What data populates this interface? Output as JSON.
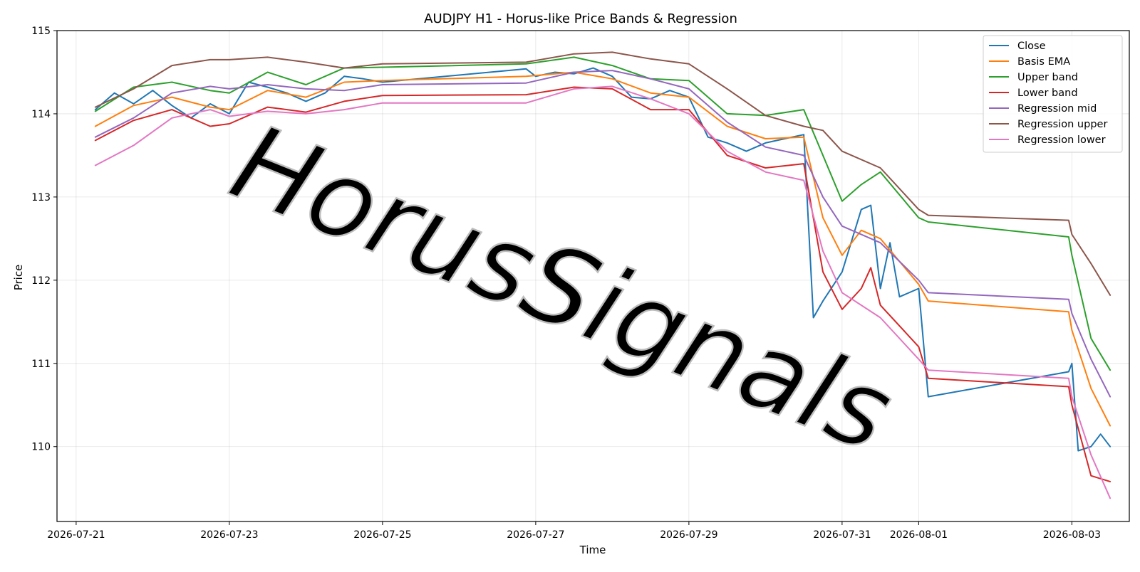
{
  "chart_data": {
    "type": "line",
    "title": "AUDJPY H1 - Horus-like Price Bands & Regression",
    "xlabel": "Time",
    "ylabel": "Price",
    "watermark": "HorusSignals",
    "x_ticks": [
      "2026-07-21",
      "2026-07-23",
      "2026-07-25",
      "2026-07-27",
      "2026-07-29",
      "2026-07-31",
      "2026-08-01",
      "2026-08-03"
    ],
    "y_ticks": [
      "110",
      "111",
      "112",
      "113",
      "114",
      "115"
    ],
    "xlim": [
      "2026-07-20T18:00",
      "2026-08-03T18:00"
    ],
    "ylim": [
      109.1,
      115.0
    ],
    "grid": true,
    "legend_position": "top-right",
    "series": [
      {
        "name": "Close",
        "color": "#1f77b4",
        "points": [
          [
            "2026-07-21T06:00",
            114.05
          ],
          [
            "2026-07-21T12:00",
            114.25
          ],
          [
            "2026-07-21T18:00",
            114.12
          ],
          [
            "2026-07-22T00:00",
            114.28
          ],
          [
            "2026-07-22T06:00",
            114.1
          ],
          [
            "2026-07-22T12:00",
            113.95
          ],
          [
            "2026-07-22T18:00",
            114.12
          ],
          [
            "2026-07-23T00:00",
            114.0
          ],
          [
            "2026-07-23T06:00",
            114.38
          ],
          [
            "2026-07-23T12:00",
            114.32
          ],
          [
            "2026-07-23T18:00",
            114.25
          ],
          [
            "2026-07-24T00:00",
            114.15
          ],
          [
            "2026-07-24T06:00",
            114.25
          ],
          [
            "2026-07-24T12:00",
            114.45
          ],
          [
            "2026-07-24T18:00",
            114.42
          ],
          [
            "2026-07-25T00:00",
            114.38
          ],
          [
            "2026-07-26T21:00",
            114.54
          ],
          [
            "2026-07-27T00:00",
            114.45
          ],
          [
            "2026-07-27T06:00",
            114.5
          ],
          [
            "2026-07-27T12:00",
            114.48
          ],
          [
            "2026-07-27T18:00",
            114.55
          ],
          [
            "2026-07-28T00:00",
            114.45
          ],
          [
            "2026-07-28T06:00",
            114.2
          ],
          [
            "2026-07-28T12:00",
            114.18
          ],
          [
            "2026-07-28T18:00",
            114.28
          ],
          [
            "2026-07-29T00:00",
            114.2
          ],
          [
            "2026-07-29T06:00",
            113.72
          ],
          [
            "2026-07-29T12:00",
            113.65
          ],
          [
            "2026-07-29T18:00",
            113.55
          ],
          [
            "2026-07-30T00:00",
            113.65
          ],
          [
            "2026-07-30T06:00",
            113.7
          ],
          [
            "2026-07-30T12:00",
            113.75
          ],
          [
            "2026-07-30T15:00",
            111.55
          ],
          [
            "2026-07-30T18:00",
            111.75
          ],
          [
            "2026-07-31T00:00",
            112.1
          ],
          [
            "2026-07-31T06:00",
            112.85
          ],
          [
            "2026-07-31T09:00",
            112.9
          ],
          [
            "2026-07-31T12:00",
            111.9
          ],
          [
            "2026-07-31T15:00",
            112.45
          ],
          [
            "2026-07-31T18:00",
            111.8
          ],
          [
            "2026-08-01T00:00",
            111.9
          ],
          [
            "2026-08-01T03:00",
            110.6
          ],
          [
            "2026-08-02T23:00",
            110.9
          ],
          [
            "2026-08-03T00:00",
            111.0
          ],
          [
            "2026-08-03T02:00",
            109.95
          ],
          [
            "2026-08-03T06:00",
            110.0
          ],
          [
            "2026-08-03T09:00",
            110.15
          ],
          [
            "2026-08-03T12:00",
            110.0
          ]
        ]
      },
      {
        "name": "Basis EMA",
        "color": "#ff7f0e",
        "points": [
          [
            "2026-07-21T06:00",
            113.85
          ],
          [
            "2026-07-21T18:00",
            114.1
          ],
          [
            "2026-07-22T06:00",
            114.2
          ],
          [
            "2026-07-22T18:00",
            114.08
          ],
          [
            "2026-07-23T00:00",
            114.05
          ],
          [
            "2026-07-23T12:00",
            114.28
          ],
          [
            "2026-07-24T00:00",
            114.2
          ],
          [
            "2026-07-24T12:00",
            114.38
          ],
          [
            "2026-07-25T00:00",
            114.4
          ],
          [
            "2026-07-26T21:00",
            114.45
          ],
          [
            "2026-07-27T12:00",
            114.5
          ],
          [
            "2026-07-28T00:00",
            114.42
          ],
          [
            "2026-07-28T12:00",
            114.25
          ],
          [
            "2026-07-29T00:00",
            114.2
          ],
          [
            "2026-07-29T12:00",
            113.85
          ],
          [
            "2026-07-30T00:00",
            113.7
          ],
          [
            "2026-07-30T12:00",
            113.72
          ],
          [
            "2026-07-30T18:00",
            112.75
          ],
          [
            "2026-07-31T00:00",
            112.3
          ],
          [
            "2026-07-31T06:00",
            112.6
          ],
          [
            "2026-07-31T12:00",
            112.5
          ],
          [
            "2026-08-01T00:00",
            111.95
          ],
          [
            "2026-08-01T03:00",
            111.75
          ],
          [
            "2026-08-02T23:00",
            111.62
          ],
          [
            "2026-08-03T00:00",
            111.4
          ],
          [
            "2026-08-03T06:00",
            110.7
          ],
          [
            "2026-08-03T12:00",
            110.25
          ]
        ]
      },
      {
        "name": "Upper band",
        "color": "#2ca02c",
        "points": [
          [
            "2026-07-21T06:00",
            114.03
          ],
          [
            "2026-07-21T18:00",
            114.32
          ],
          [
            "2026-07-22T06:00",
            114.38
          ],
          [
            "2026-07-22T18:00",
            114.28
          ],
          [
            "2026-07-23T00:00",
            114.25
          ],
          [
            "2026-07-23T12:00",
            114.5
          ],
          [
            "2026-07-24T00:00",
            114.35
          ],
          [
            "2026-07-24T12:00",
            114.55
          ],
          [
            "2026-07-25T00:00",
            114.56
          ],
          [
            "2026-07-26T21:00",
            114.6
          ],
          [
            "2026-07-27T12:00",
            114.68
          ],
          [
            "2026-07-28T00:00",
            114.58
          ],
          [
            "2026-07-28T12:00",
            114.42
          ],
          [
            "2026-07-29T00:00",
            114.4
          ],
          [
            "2026-07-29T12:00",
            114.0
          ],
          [
            "2026-07-30T00:00",
            113.98
          ],
          [
            "2026-07-30T12:00",
            114.05
          ],
          [
            "2026-07-30T18:00",
            113.5
          ],
          [
            "2026-07-31T00:00",
            112.95
          ],
          [
            "2026-07-31T06:00",
            113.15
          ],
          [
            "2026-07-31T12:00",
            113.3
          ],
          [
            "2026-08-01T00:00",
            112.75
          ],
          [
            "2026-08-01T03:00",
            112.7
          ],
          [
            "2026-08-02T23:00",
            112.52
          ],
          [
            "2026-08-03T00:00",
            112.3
          ],
          [
            "2026-08-03T06:00",
            111.3
          ],
          [
            "2026-08-03T12:00",
            110.92
          ]
        ]
      },
      {
        "name": "Lower band",
        "color": "#d62728",
        "points": [
          [
            "2026-07-21T06:00",
            113.68
          ],
          [
            "2026-07-21T18:00",
            113.92
          ],
          [
            "2026-07-22T06:00",
            114.05
          ],
          [
            "2026-07-22T18:00",
            113.85
          ],
          [
            "2026-07-23T00:00",
            113.88
          ],
          [
            "2026-07-23T12:00",
            114.08
          ],
          [
            "2026-07-24T00:00",
            114.02
          ],
          [
            "2026-07-24T12:00",
            114.15
          ],
          [
            "2026-07-25T00:00",
            114.22
          ],
          [
            "2026-07-26T21:00",
            114.23
          ],
          [
            "2026-07-27T12:00",
            114.32
          ],
          [
            "2026-07-28T00:00",
            114.3
          ],
          [
            "2026-07-28T12:00",
            114.05
          ],
          [
            "2026-07-29T00:00",
            114.05
          ],
          [
            "2026-07-29T12:00",
            113.5
          ],
          [
            "2026-07-30T00:00",
            113.35
          ],
          [
            "2026-07-30T12:00",
            113.4
          ],
          [
            "2026-07-30T18:00",
            112.1
          ],
          [
            "2026-07-31T00:00",
            111.65
          ],
          [
            "2026-07-31T06:00",
            111.9
          ],
          [
            "2026-07-31T09:00",
            112.15
          ],
          [
            "2026-07-31T12:00",
            111.7
          ],
          [
            "2026-08-01T00:00",
            111.2
          ],
          [
            "2026-08-01T03:00",
            110.82
          ],
          [
            "2026-08-02T23:00",
            110.72
          ],
          [
            "2026-08-03T00:00",
            110.5
          ],
          [
            "2026-08-03T06:00",
            109.65
          ],
          [
            "2026-08-03T12:00",
            109.58
          ]
        ]
      },
      {
        "name": "Regression mid",
        "color": "#9467bd",
        "points": [
          [
            "2026-07-21T06:00",
            113.72
          ],
          [
            "2026-07-21T18:00",
            113.95
          ],
          [
            "2026-07-22T06:00",
            114.25
          ],
          [
            "2026-07-22T18:00",
            114.33
          ],
          [
            "2026-07-23T00:00",
            114.3
          ],
          [
            "2026-07-23T12:00",
            114.35
          ],
          [
            "2026-07-24T00:00",
            114.3
          ],
          [
            "2026-07-24T12:00",
            114.28
          ],
          [
            "2026-07-25T00:00",
            114.35
          ],
          [
            "2026-07-26T21:00",
            114.37
          ],
          [
            "2026-07-27T12:00",
            114.5
          ],
          [
            "2026-07-28T00:00",
            114.52
          ],
          [
            "2026-07-28T12:00",
            114.42
          ],
          [
            "2026-07-29T00:00",
            114.3
          ],
          [
            "2026-07-29T12:00",
            113.9
          ],
          [
            "2026-07-30T00:00",
            113.6
          ],
          [
            "2026-07-30T12:00",
            113.5
          ],
          [
            "2026-07-30T18:00",
            113.0
          ],
          [
            "2026-07-31T00:00",
            112.65
          ],
          [
            "2026-07-31T12:00",
            112.45
          ],
          [
            "2026-08-01T00:00",
            112.0
          ],
          [
            "2026-08-01T03:00",
            111.85
          ],
          [
            "2026-08-02T23:00",
            111.77
          ],
          [
            "2026-08-03T00:00",
            111.6
          ],
          [
            "2026-08-03T06:00",
            111.05
          ],
          [
            "2026-08-03T12:00",
            110.6
          ]
        ]
      },
      {
        "name": "Regression upper",
        "color": "#8c564b",
        "points": [
          [
            "2026-07-21T06:00",
            114.08
          ],
          [
            "2026-07-21T18:00",
            114.3
          ],
          [
            "2026-07-22T06:00",
            114.58
          ],
          [
            "2026-07-22T18:00",
            114.65
          ],
          [
            "2026-07-23T00:00",
            114.65
          ],
          [
            "2026-07-23T12:00",
            114.68
          ],
          [
            "2026-07-24T00:00",
            114.62
          ],
          [
            "2026-07-24T12:00",
            114.55
          ],
          [
            "2026-07-25T00:00",
            114.6
          ],
          [
            "2026-07-26T21:00",
            114.62
          ],
          [
            "2026-07-27T12:00",
            114.72
          ],
          [
            "2026-07-28T00:00",
            114.74
          ],
          [
            "2026-07-28T12:00",
            114.66
          ],
          [
            "2026-07-29T00:00",
            114.6
          ],
          [
            "2026-07-29T12:00",
            114.3
          ],
          [
            "2026-07-30T00:00",
            113.98
          ],
          [
            "2026-07-30T12:00",
            113.85
          ],
          [
            "2026-07-30T18:00",
            113.8
          ],
          [
            "2026-07-31T00:00",
            113.55
          ],
          [
            "2026-07-31T12:00",
            113.35
          ],
          [
            "2026-08-01T00:00",
            112.85
          ],
          [
            "2026-08-01T03:00",
            112.78
          ],
          [
            "2026-08-02T23:00",
            112.72
          ],
          [
            "2026-08-03T00:00",
            112.55
          ],
          [
            "2026-08-03T06:00",
            112.2
          ],
          [
            "2026-08-03T12:00",
            111.82
          ]
        ]
      },
      {
        "name": "Regression lower",
        "color": "#e377c2",
        "points": [
          [
            "2026-07-21T06:00",
            113.38
          ],
          [
            "2026-07-21T18:00",
            113.62
          ],
          [
            "2026-07-22T06:00",
            113.95
          ],
          [
            "2026-07-22T18:00",
            114.05
          ],
          [
            "2026-07-23T00:00",
            113.97
          ],
          [
            "2026-07-23T12:00",
            114.03
          ],
          [
            "2026-07-24T00:00",
            114.0
          ],
          [
            "2026-07-24T12:00",
            114.05
          ],
          [
            "2026-07-25T00:00",
            114.13
          ],
          [
            "2026-07-26T21:00",
            114.13
          ],
          [
            "2026-07-27T12:00",
            114.3
          ],
          [
            "2026-07-28T00:00",
            114.33
          ],
          [
            "2026-07-28T12:00",
            114.18
          ],
          [
            "2026-07-29T00:00",
            114.0
          ],
          [
            "2026-07-29T12:00",
            113.55
          ],
          [
            "2026-07-30T00:00",
            113.3
          ],
          [
            "2026-07-30T12:00",
            113.2
          ],
          [
            "2026-07-30T18:00",
            112.35
          ],
          [
            "2026-07-31T00:00",
            111.85
          ],
          [
            "2026-07-31T12:00",
            111.55
          ],
          [
            "2026-08-01T00:00",
            111.05
          ],
          [
            "2026-08-01T03:00",
            110.92
          ],
          [
            "2026-08-02T23:00",
            110.82
          ],
          [
            "2026-08-03T00:00",
            110.6
          ],
          [
            "2026-08-03T06:00",
            109.9
          ],
          [
            "2026-08-03T12:00",
            109.38
          ]
        ]
      }
    ]
  }
}
